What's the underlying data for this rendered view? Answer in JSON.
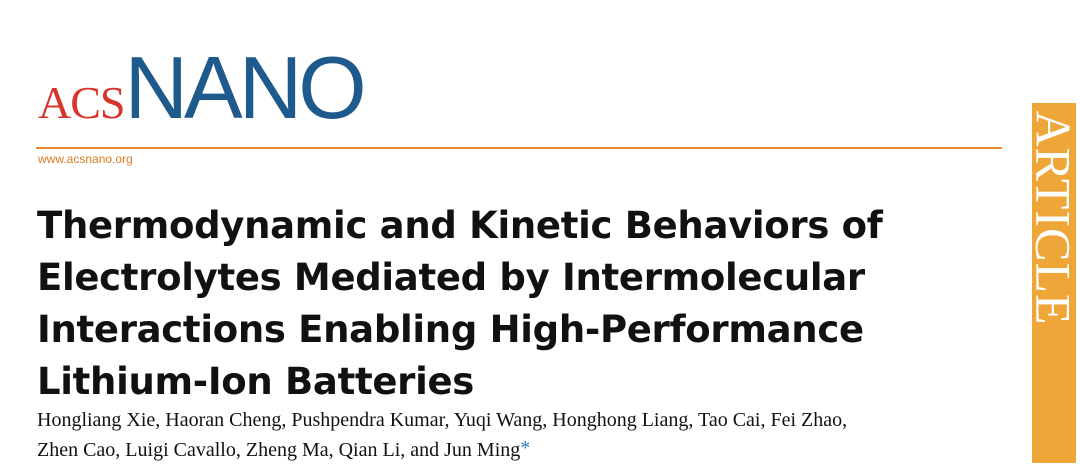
{
  "journal": {
    "logo_acs": "ACS",
    "logo_nano": "NANO",
    "url": "www.acsnano.org",
    "section_label": "ARTICLE"
  },
  "article": {
    "title_lines": [
      "Thermodynamic and Kinetic Behaviors of",
      "Electrolytes Mediated by Intermolecular",
      "Interactions Enabling High-Performance",
      "Lithium-Ion Batteries"
    ],
    "author_lines": [
      "Hongliang Xie, Haoran Cheng, Pushpendra Kumar, Yuqi Wang, Honghong Liang, Tao Cai, Fei Zhao,",
      "Zhen Cao, Luigi Cavallo, Zheng Ma, Qian Li, and Jun Ming"
    ],
    "corresponding_mark": "*"
  },
  "colors": {
    "acs_red": "#d9342b",
    "nano_blue": "#1f5a8c",
    "url_orange": "#e07a1f",
    "rule_orange": "#e8882e",
    "side_bar_gold": "#efa638",
    "asterisk_blue": "#2a7fc0"
  }
}
